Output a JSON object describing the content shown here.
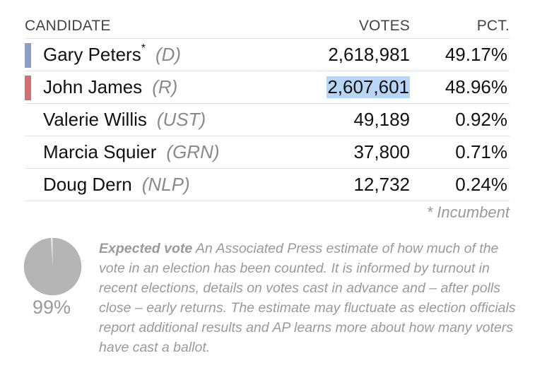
{
  "header": {
    "candidate": "CANDIDATE",
    "votes": "VOTES",
    "pct": "PCT."
  },
  "colors": {
    "democrat": "#8c9ec5",
    "republican": "#d07072",
    "highlight": "#b8d5f4"
  },
  "rows": [
    {
      "name": "Gary Peters",
      "marker": "*",
      "party": "(D)",
      "votes": "2,618,981",
      "pct": "49.17%"
    },
    {
      "name": "John James",
      "party": "(R)",
      "votes": "2,607,601",
      "pct": "48.96%"
    },
    {
      "name": "Valerie Willis",
      "party": "(UST)",
      "votes": "49,189",
      "pct": "0.92%"
    },
    {
      "name": "Marcia Squier",
      "party": "(GRN)",
      "votes": "37,800",
      "pct": "0.71%"
    },
    {
      "name": "Doug Dern",
      "party": "(NLP)",
      "votes": "12,732",
      "pct": "0.24%"
    }
  ],
  "footnote": "* Incumbent",
  "expected": {
    "percent": 99,
    "label": "99%",
    "term": "Expected vote",
    "text": " An Associated Press estimate of how much of the vote in an election has been counted. It is informed by turnout in recent elections, details on votes cast in advance and – after polls close – early returns. The estimate may fluctuate as election officials report additional results and AP learns more about how many voters have cast a ballot."
  }
}
